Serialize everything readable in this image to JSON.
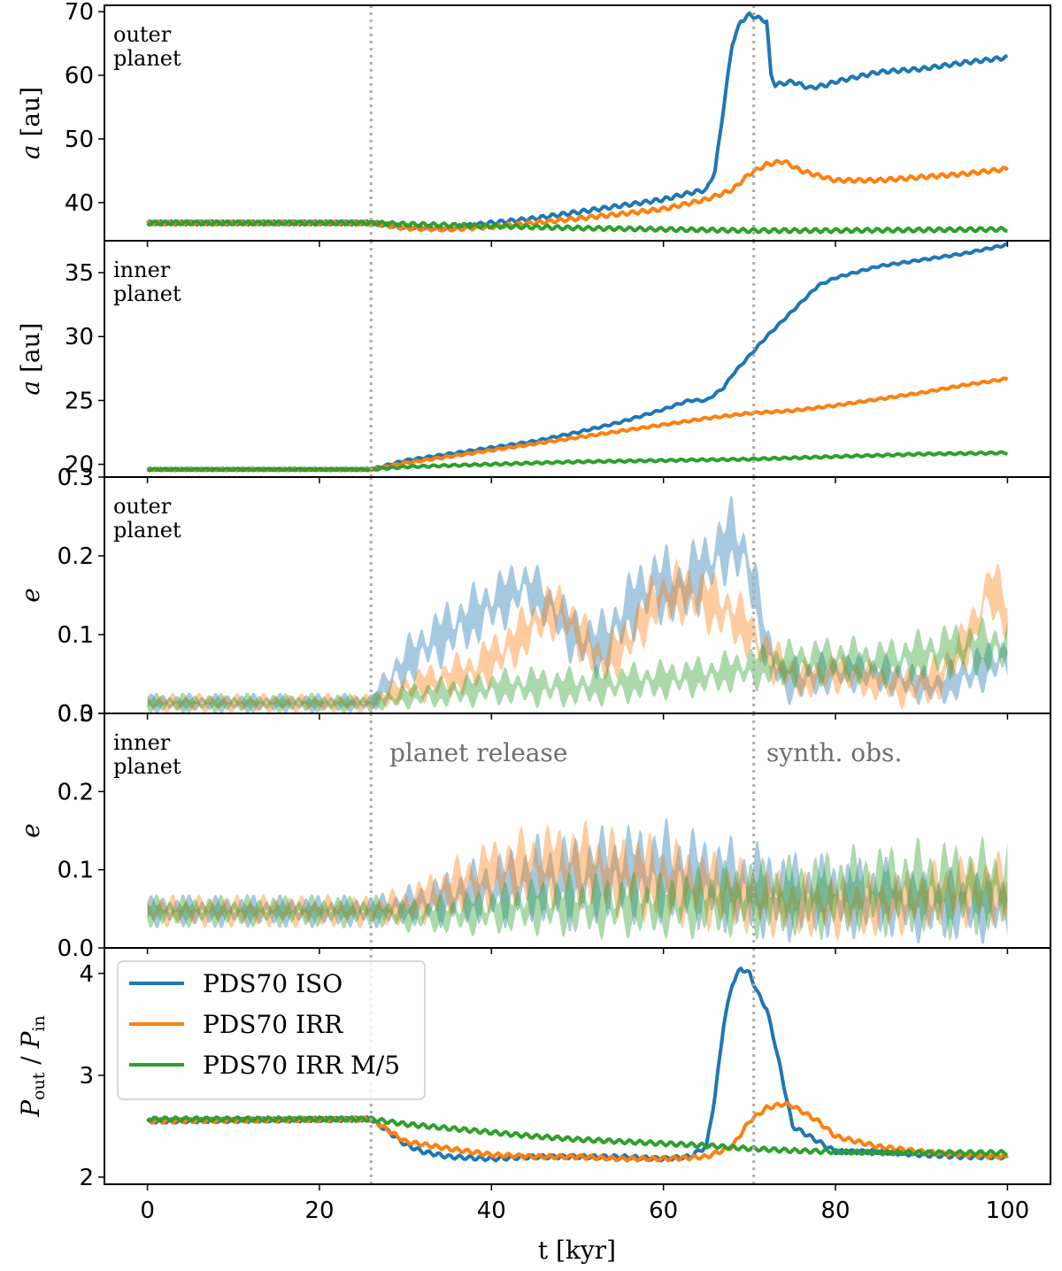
{
  "chart_data": {
    "type": "line",
    "xlabel": "t [kyr]",
    "xlim": [
      -5,
      105
    ],
    "xticks": [
      0,
      20,
      40,
      60,
      80,
      100
    ],
    "vlines": [
      26,
      70.5
    ],
    "colors": {
      "iso": "#1f77b4",
      "irr": "#ff7f0e",
      "m5": "#2ca02c",
      "marker": "#aaaaaa"
    },
    "legend": {
      "placement": "upper-left of bottom panel",
      "entries": [
        "PDS70 ISO",
        "PDS70 IRR",
        "PDS70 IRR M/5"
      ]
    },
    "markers": {
      "release": "planet release",
      "obs": "synth. obs."
    },
    "panels": [
      {
        "id": "a_outer",
        "ylabel": "a [au]",
        "annotation": [
          "outer",
          "planet"
        ],
        "ylim": [
          34,
          71
        ],
        "yticks": [
          40,
          50,
          60,
          70
        ],
        "tick_labels": [
          "40",
          "50",
          "60",
          "70"
        ],
        "style": "line",
        "osc": 0.3,
        "series": [
          {
            "name": "PDS70 ISO",
            "key": "iso",
            "x": [
              0,
              26,
              30,
              35,
              40,
              45,
              50,
              55,
              60,
              63,
              65,
              66,
              67,
              68,
              69,
              70,
              72,
              72.5,
              73,
              75,
              77,
              79,
              80,
              85,
              90,
              95,
              100
            ],
            "y": [
              36.8,
              36.8,
              36.2,
              36.0,
              36.8,
              37.5,
              38.5,
              39.5,
              40.5,
              41.5,
              42.0,
              45.0,
              55.0,
              65.0,
              68.5,
              69.5,
              68.5,
              60.0,
              58.5,
              59.0,
              58.0,
              58.5,
              59.0,
              60.5,
              61.0,
              62.0,
              62.8
            ]
          },
          {
            "name": "PDS70 IRR",
            "key": "irr",
            "x": [
              0,
              26,
              30,
              35,
              40,
              45,
              50,
              55,
              60,
              65,
              68,
              70,
              72,
              74,
              76,
              80,
              85,
              90,
              95,
              100
            ],
            "y": [
              36.8,
              36.8,
              36.0,
              35.8,
              36.2,
              36.8,
              37.5,
              38.2,
              39.0,
              40.5,
              42.0,
              44.5,
              46.0,
              46.5,
              45.0,
              43.5,
              43.5,
              44.0,
              44.5,
              45.3
            ]
          },
          {
            "name": "PDS70 IRR M/5",
            "key": "m5",
            "x": [
              0,
              26,
              30,
              40,
              50,
              60,
              70,
              80,
              90,
              100
            ],
            "y": [
              36.8,
              36.8,
              36.6,
              36.3,
              36.0,
              35.8,
              35.6,
              35.6,
              35.7,
              35.8
            ]
          }
        ]
      },
      {
        "id": "a_inner",
        "ylabel": "a [au]",
        "annotation": [
          "inner",
          "planet"
        ],
        "ylim": [
          19,
          37.5
        ],
        "yticks": [
          20,
          25,
          30,
          35
        ],
        "tick_labels": [
          "20",
          "25",
          "30",
          "35"
        ],
        "style": "line",
        "osc": 0.08,
        "series": [
          {
            "name": "PDS70 ISO",
            "key": "iso",
            "x": [
              0,
              26,
              30,
              35,
              40,
              45,
              50,
              55,
              60,
              63,
              65,
              67,
              68,
              70,
              72,
              75,
              78,
              80,
              85,
              90,
              95,
              100
            ],
            "y": [
              19.6,
              19.6,
              20.3,
              20.8,
              21.3,
              21.8,
              22.5,
              23.3,
              24.3,
              25.0,
              25.0,
              26.0,
              27.0,
              28.5,
              30.0,
              32.0,
              34.0,
              34.6,
              35.5,
              36.0,
              36.5,
              37.2
            ]
          },
          {
            "name": "PDS70 IRR",
            "key": "irr",
            "x": [
              0,
              26,
              30,
              35,
              40,
              45,
              50,
              55,
              60,
              65,
              70,
              75,
              80,
              85,
              90,
              95,
              100
            ],
            "y": [
              19.6,
              19.6,
              20.1,
              20.6,
              21.1,
              21.6,
              22.1,
              22.6,
              23.1,
              23.6,
              24.0,
              24.2,
              24.6,
              25.1,
              25.6,
              26.2,
              26.7
            ]
          },
          {
            "name": "PDS70 IRR M/5",
            "key": "m5",
            "x": [
              0,
              26,
              30,
              40,
              50,
              60,
              70,
              80,
              90,
              100
            ],
            "y": [
              19.6,
              19.6,
              19.8,
              20.0,
              20.2,
              20.3,
              20.4,
              20.6,
              20.8,
              20.9
            ]
          }
        ]
      },
      {
        "id": "e_outer",
        "ylabel": "e",
        "annotation": [
          "outer",
          "planet"
        ],
        "ylim": [
          0,
          0.3
        ],
        "yticks": [
          0,
          0.1,
          0.2,
          0.3
        ],
        "tick_labels": [
          "0.0",
          "0.1",
          "0.2",
          "0.3"
        ],
        "style": "band",
        "band_opacity": 0.4,
        "series": [
          {
            "name": "PDS70 ISO",
            "key": "iso",
            "x": [
              0,
              26,
              29,
              32,
              35,
              38,
              41,
              44,
              47,
              50,
              53,
              56,
              59,
              62,
              65,
              68,
              70,
              72,
              74,
              76,
              80,
              84,
              88,
              92,
              96,
              100
            ],
            "y": [
              0.012,
              0.012,
              0.05,
              0.08,
              0.1,
              0.12,
              0.14,
              0.16,
              0.13,
              0.09,
              0.08,
              0.13,
              0.16,
              0.15,
              0.18,
              0.22,
              0.18,
              0.08,
              0.04,
              0.04,
              0.05,
              0.05,
              0.04,
              0.03,
              0.05,
              0.07
            ],
            "amp": [
              0.012,
              0.012,
              0.03,
              0.035,
              0.04,
              0.04,
              0.04,
              0.035,
              0.035,
              0.04,
              0.045,
              0.045,
              0.05,
              0.05,
              0.05,
              0.05,
              0.05,
              0.035,
              0.03,
              0.03,
              0.025,
              0.025,
              0.025,
              0.025,
              0.03,
              0.03
            ]
          },
          {
            "name": "PDS70 IRR",
            "key": "irr",
            "x": [
              0,
              26,
              30,
              34,
              38,
              42,
              46,
              48,
              50,
              53,
              56,
              59,
              62,
              65,
              68,
              70,
              72,
              76,
              80,
              84,
              88,
              92,
              96,
              98,
              100
            ],
            "y": [
              0.012,
              0.012,
              0.03,
              0.04,
              0.05,
              0.08,
              0.12,
              0.13,
              0.1,
              0.06,
              0.09,
              0.14,
              0.15,
              0.14,
              0.12,
              0.1,
              0.07,
              0.04,
              0.05,
              0.04,
              0.03,
              0.04,
              0.1,
              0.16,
              0.12
            ],
            "amp": [
              0.012,
              0.012,
              0.02,
              0.025,
              0.03,
              0.035,
              0.035,
              0.035,
              0.035,
              0.03,
              0.035,
              0.04,
              0.04,
              0.04,
              0.04,
              0.035,
              0.03,
              0.025,
              0.025,
              0.025,
              0.025,
              0.03,
              0.035,
              0.04,
              0.04
            ]
          },
          {
            "name": "PDS70 IRR M/5",
            "key": "m5",
            "x": [
              0,
              26,
              30,
              35,
              40,
              45,
              50,
              55,
              60,
              65,
              70,
              75,
              80,
              85,
              90,
              95,
              100
            ],
            "y": [
              0.012,
              0.012,
              0.02,
              0.025,
              0.03,
              0.032,
              0.03,
              0.035,
              0.04,
              0.045,
              0.055,
              0.06,
              0.065,
              0.06,
              0.07,
              0.08,
              0.08
            ],
            "amp": [
              0.012,
              0.012,
              0.015,
              0.02,
              0.022,
              0.025,
              0.025,
              0.025,
              0.025,
              0.025,
              0.028,
              0.03,
              0.03,
              0.03,
              0.032,
              0.035,
              0.035
            ]
          }
        ]
      },
      {
        "id": "e_inner",
        "ylabel": "e",
        "annotation": [
          "inner",
          "planet"
        ],
        "ylim": [
          0,
          0.3
        ],
        "yticks": [
          0,
          0.1,
          0.2,
          0.3
        ],
        "tick_labels": [
          "0.0",
          "0.1",
          "0.2",
          "0.3"
        ],
        "style": "band",
        "band_opacity": 0.4,
        "show_markers": true,
        "series": [
          {
            "name": "PDS70 ISO",
            "key": "iso",
            "x": [
              0,
              26,
              30,
              35,
              40,
              45,
              50,
              55,
              60,
              65,
              70,
              75,
              80,
              85,
              90,
              95,
              100
            ],
            "y": [
              0.045,
              0.045,
              0.05,
              0.06,
              0.07,
              0.08,
              0.08,
              0.09,
              0.09,
              0.08,
              0.07,
              0.06,
              0.06,
              0.06,
              0.05,
              0.05,
              0.05
            ],
            "amp": [
              0.02,
              0.02,
              0.025,
              0.035,
              0.045,
              0.055,
              0.06,
              0.06,
              0.065,
              0.06,
              0.06,
              0.055,
              0.05,
              0.05,
              0.045,
              0.045,
              0.045
            ]
          },
          {
            "name": "PDS70 IRR",
            "key": "irr",
            "x": [
              0,
              26,
              30,
              35,
              40,
              45,
              50,
              55,
              60,
              65,
              70,
              75,
              80,
              85,
              90,
              95,
              100
            ],
            "y": [
              0.045,
              0.045,
              0.05,
              0.07,
              0.09,
              0.1,
              0.1,
              0.09,
              0.08,
              0.07,
              0.06,
              0.05,
              0.05,
              0.05,
              0.06,
              0.07,
              0.07
            ],
            "amp": [
              0.02,
              0.02,
              0.025,
              0.035,
              0.045,
              0.05,
              0.055,
              0.055,
              0.055,
              0.05,
              0.045,
              0.04,
              0.04,
              0.04,
              0.04,
              0.045,
              0.045
            ]
          },
          {
            "name": "PDS70 IRR M/5",
            "key": "m5",
            "x": [
              0,
              26,
              30,
              35,
              40,
              45,
              50,
              55,
              60,
              65,
              70,
              75,
              80,
              85,
              90,
              95,
              100
            ],
            "y": [
              0.045,
              0.045,
              0.04,
              0.04,
              0.045,
              0.05,
              0.05,
              0.05,
              0.05,
              0.055,
              0.06,
              0.06,
              0.065,
              0.07,
              0.07,
              0.07,
              0.07
            ],
            "amp": [
              0.02,
              0.02,
              0.02,
              0.025,
              0.03,
              0.035,
              0.04,
              0.04,
              0.04,
              0.045,
              0.05,
              0.05,
              0.055,
              0.055,
              0.06,
              0.06,
              0.06
            ]
          }
        ]
      },
      {
        "id": "p_ratio",
        "ylabel": "P_out / P_in",
        "ylabel_parts": [
          "P",
          "out",
          " / ",
          "P",
          "in"
        ],
        "ylim": [
          1.93,
          4.25
        ],
        "yticks": [
          2,
          3,
          4
        ],
        "tick_labels": [
          "2",
          "3",
          "4"
        ],
        "style": "line",
        "osc": 0.02,
        "show_legend": true,
        "series": [
          {
            "name": "PDS70 ISO",
            "key": "iso",
            "x": [
              0,
              26,
              28,
              30,
              32,
              35,
              40,
              45,
              50,
              55,
              60,
              63,
              65,
              66,
              67,
              68,
              69,
              70,
              71,
              72,
              73,
              74,
              75,
              78,
              80,
              85,
              90,
              95,
              100
            ],
            "y": [
              2.55,
              2.57,
              2.45,
              2.32,
              2.25,
              2.2,
              2.18,
              2.2,
              2.2,
              2.2,
              2.18,
              2.2,
              2.3,
              2.8,
              3.5,
              3.9,
              4.05,
              4.0,
              3.8,
              3.65,
              3.3,
              2.9,
              2.5,
              2.35,
              2.25,
              2.25,
              2.22,
              2.2,
              2.2
            ]
          },
          {
            "name": "PDS70 IRR",
            "key": "irr",
            "x": [
              0,
              26,
              30,
              35,
              40,
              45,
              50,
              55,
              60,
              65,
              68,
              70,
              72,
              74,
              75,
              78,
              80,
              85,
              90,
              95,
              100
            ],
            "y": [
              2.55,
              2.57,
              2.35,
              2.28,
              2.22,
              2.2,
              2.2,
              2.18,
              2.18,
              2.2,
              2.3,
              2.55,
              2.68,
              2.72,
              2.7,
              2.55,
              2.4,
              2.3,
              2.25,
              2.22,
              2.2
            ]
          },
          {
            "name": "PDS70 IRR M/5",
            "key": "m5",
            "x": [
              0,
              26,
              30,
              35,
              40,
              45,
              50,
              55,
              60,
              65,
              70,
              75,
              80,
              85,
              90,
              95,
              100
            ],
            "y": [
              2.57,
              2.57,
              2.52,
              2.48,
              2.44,
              2.4,
              2.37,
              2.35,
              2.33,
              2.31,
              2.28,
              2.26,
              2.25,
              2.24,
              2.24,
              2.24,
              2.24
            ]
          }
        ]
      }
    ]
  }
}
